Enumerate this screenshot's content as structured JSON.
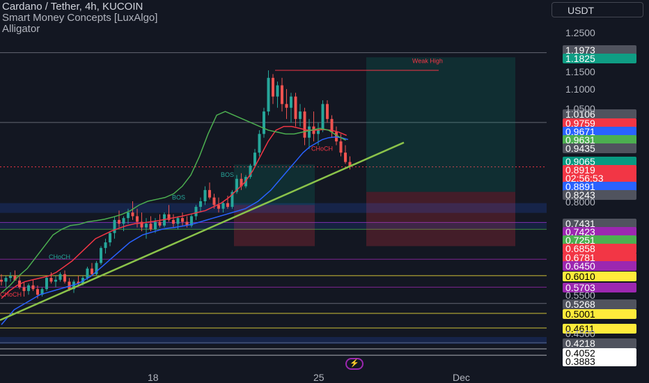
{
  "legend": {
    "symbol": "Cardano / Tether, 4h, KUCOIN",
    "indicator1": "Smart Money Concepts [LuxAlgo]",
    "indicator2": "Alligator"
  },
  "currency": "USDT",
  "chart_data": {
    "type": "candlestick",
    "symbol": "ADA/USDT",
    "timeframe": "4h",
    "exchange": "KUCOIN",
    "ylim": [
      0.3883,
      1.25
    ],
    "y_ticks": [
      "1.2500",
      "1.1500",
      "1.1000",
      "1.0500",
      "0.8000",
      "0.5500",
      "0.4500"
    ],
    "x_ticks": [
      "18",
      "25",
      "Dec"
    ],
    "price_labels": [
      {
        "text": "1.1973",
        "bg": "#50535e",
        "fg": "#ffffff"
      },
      {
        "text": "1.1825",
        "bg": "#0f9d84",
        "fg": "#ffffff"
      },
      {
        "text": "1.0106",
        "bg": "#50535e",
        "fg": "#ffffff"
      },
      {
        "text": "0.9759",
        "bg": "#f23645",
        "fg": "#ffffff"
      },
      {
        "text": "0.9671",
        "bg": "#2962ff",
        "fg": "#ffffff"
      },
      {
        "text": "0.9631",
        "bg": "#4caf50",
        "fg": "#ffffff"
      },
      {
        "text": "0.9435",
        "bg": "#50535e",
        "fg": "#ffffff"
      },
      {
        "text": "0.9065",
        "bg": "#089981",
        "fg": "#ffffff"
      },
      {
        "text": "0.8919",
        "bg": "#f23645",
        "fg": "#ffffff"
      },
      {
        "text": "02:56:53",
        "bg": "#f23645",
        "fg": "#ffffff"
      },
      {
        "text": "0.8891",
        "bg": "#2962ff",
        "fg": "#ffffff"
      },
      {
        "text": "0.8243",
        "bg": "#50535e",
        "fg": "#ffffff"
      },
      {
        "text": "0.7431",
        "bg": "#50535e",
        "fg": "#ffffff"
      },
      {
        "text": "0.7423",
        "bg": "#9c27b0",
        "fg": "#ffffff"
      },
      {
        "text": "0.7251",
        "bg": "#4caf50",
        "fg": "#ffffff"
      },
      {
        "text": "0.6858",
        "bg": "#f23645",
        "fg": "#ffffff"
      },
      {
        "text": "0.6781",
        "bg": "#f23645",
        "fg": "#ffffff"
      },
      {
        "text": "0.6450",
        "bg": "#9c27b0",
        "fg": "#ffffff"
      },
      {
        "text": "0.6010",
        "bg": "#ffeb3b",
        "fg": "#000000"
      },
      {
        "text": "0.5703",
        "bg": "#9c27b0",
        "fg": "#ffffff"
      },
      {
        "text": "0.5268",
        "bg": "#50535e",
        "fg": "#ffffff"
      },
      {
        "text": "0.5001",
        "bg": "#ffeb3b",
        "fg": "#000000"
      },
      {
        "text": "0.4611",
        "bg": "#ffeb3b",
        "fg": "#000000"
      },
      {
        "text": "0.4218",
        "bg": "#50535e",
        "fg": "#ffffff"
      },
      {
        "text": "0.4052",
        "bg": "#ffffff",
        "fg": "#000000"
      },
      {
        "text": "0.3883",
        "bg": "#ffffff",
        "fg": "#000000"
      }
    ],
    "annotations": [
      "Weak High",
      "BOS",
      "BOS",
      "CHoCH",
      "CHoCH",
      "CHoCH"
    ],
    "colors": {
      "up": "#26a69a",
      "down": "#ef5350",
      "jaw": "#2962ff",
      "teeth": "#f23645",
      "lips": "#4caf50",
      "trendline": "#8bc34a"
    },
    "candles": [
      [
        0.59,
        0.605,
        0.575,
        0.585
      ],
      [
        0.585,
        0.6,
        0.57,
        0.595
      ],
      [
        0.595,
        0.61,
        0.585,
        0.6
      ],
      [
        0.6,
        0.615,
        0.59,
        0.588
      ],
      [
        0.588,
        0.6,
        0.565,
        0.57
      ],
      [
        0.57,
        0.585,
        0.545,
        0.56
      ],
      [
        0.56,
        0.58,
        0.55,
        0.575
      ],
      [
        0.575,
        0.59,
        0.56,
        0.565
      ],
      [
        0.565,
        0.575,
        0.54,
        0.55
      ],
      [
        0.55,
        0.57,
        0.545,
        0.565
      ],
      [
        0.565,
        0.6,
        0.56,
        0.595
      ],
      [
        0.595,
        0.61,
        0.58,
        0.585
      ],
      [
        0.585,
        0.6,
        0.57,
        0.59
      ],
      [
        0.59,
        0.61,
        0.585,
        0.605
      ],
      [
        0.605,
        0.615,
        0.58,
        0.585
      ],
      [
        0.585,
        0.595,
        0.56,
        0.565
      ],
      [
        0.565,
        0.59,
        0.555,
        0.585
      ],
      [
        0.585,
        0.6,
        0.575,
        0.58
      ],
      [
        0.58,
        0.6,
        0.575,
        0.595
      ],
      [
        0.595,
        0.625,
        0.59,
        0.62
      ],
      [
        0.62,
        0.635,
        0.6,
        0.605
      ],
      [
        0.605,
        0.64,
        0.6,
        0.635
      ],
      [
        0.635,
        0.68,
        0.63,
        0.675
      ],
      [
        0.675,
        0.7,
        0.66,
        0.69
      ],
      [
        0.69,
        0.72,
        0.68,
        0.715
      ],
      [
        0.715,
        0.76,
        0.7,
        0.75
      ],
      [
        0.75,
        0.775,
        0.73,
        0.74
      ],
      [
        0.74,
        0.76,
        0.72,
        0.755
      ],
      [
        0.755,
        0.78,
        0.74,
        0.77
      ],
      [
        0.77,
        0.8,
        0.75,
        0.76
      ],
      [
        0.76,
        0.78,
        0.73,
        0.745
      ],
      [
        0.745,
        0.77,
        0.72,
        0.73
      ],
      [
        0.73,
        0.755,
        0.7,
        0.74
      ],
      [
        0.74,
        0.76,
        0.72,
        0.725
      ],
      [
        0.725,
        0.755,
        0.715,
        0.745
      ],
      [
        0.745,
        0.765,
        0.73,
        0.735
      ],
      [
        0.735,
        0.77,
        0.73,
        0.765
      ],
      [
        0.765,
        0.79,
        0.745,
        0.75
      ],
      [
        0.75,
        0.765,
        0.73,
        0.74
      ],
      [
        0.74,
        0.76,
        0.725,
        0.755
      ],
      [
        0.755,
        0.77,
        0.735,
        0.745
      ],
      [
        0.745,
        0.76,
        0.73,
        0.735
      ],
      [
        0.735,
        0.765,
        0.73,
        0.76
      ],
      [
        0.76,
        0.79,
        0.75,
        0.785
      ],
      [
        0.785,
        0.81,
        0.77,
        0.8
      ],
      [
        0.8,
        0.84,
        0.79,
        0.83
      ],
      [
        0.83,
        0.85,
        0.805,
        0.81
      ],
      [
        0.81,
        0.82,
        0.78,
        0.79
      ],
      [
        0.79,
        0.81,
        0.77,
        0.78
      ],
      [
        0.78,
        0.8,
        0.77,
        0.795
      ],
      [
        0.795,
        0.815,
        0.78,
        0.785
      ],
      [
        0.785,
        0.83,
        0.78,
        0.825
      ],
      [
        0.825,
        0.87,
        0.82,
        0.86
      ],
      [
        0.86,
        0.875,
        0.83,
        0.84
      ],
      [
        0.84,
        0.87,
        0.835,
        0.865
      ],
      [
        0.865,
        0.9,
        0.86,
        0.895
      ],
      [
        0.895,
        0.94,
        0.89,
        0.93
      ],
      [
        0.93,
        0.99,
        0.92,
        0.98
      ],
      [
        0.98,
        1.05,
        0.97,
        1.04
      ],
      [
        1.04,
        1.15,
        1.03,
        1.13
      ],
      [
        1.13,
        1.14,
        1.06,
        1.08
      ],
      [
        1.08,
        1.12,
        1.05,
        1.11
      ],
      [
        1.11,
        1.13,
        1.04,
        1.06
      ],
      [
        1.06,
        1.1,
        1.02,
        1.05
      ],
      [
        1.05,
        1.09,
        1.01,
        1.08
      ],
      [
        1.08,
        1.09,
        1.0,
        1.02
      ],
      [
        1.02,
        1.06,
        1.0,
        1.04
      ],
      [
        1.04,
        1.05,
        0.95,
        0.97
      ],
      [
        0.97,
        1.02,
        0.94,
        1.0
      ],
      [
        1.0,
        1.04,
        0.96,
        0.98
      ],
      [
        0.98,
        1.01,
        0.95,
        0.99
      ],
      [
        0.99,
        1.07,
        0.985,
        1.06
      ],
      [
        1.06,
        1.07,
        1.01,
        1.02
      ],
      [
        1.02,
        1.03,
        0.97,
        0.985
      ],
      [
        0.985,
        1.0,
        0.95,
        0.96
      ],
      [
        0.96,
        0.98,
        0.92,
        0.93
      ],
      [
        0.93,
        0.95,
        0.9,
        0.905
      ],
      [
        0.905,
        0.92,
        0.885,
        0.892
      ]
    ],
    "jaw": [
      0.47,
      0.49,
      0.51,
      0.52,
      0.53,
      0.54,
      0.55,
      0.555,
      0.56,
      0.565,
      0.57,
      0.575,
      0.58,
      0.59,
      0.6,
      0.615,
      0.63,
      0.645,
      0.66,
      0.675,
      0.69,
      0.7,
      0.71,
      0.715,
      0.72,
      0.725,
      0.728,
      0.73,
      0.733,
      0.736,
      0.74,
      0.745,
      0.75,
      0.755,
      0.76,
      0.765,
      0.77,
      0.775,
      0.78,
      0.79,
      0.8,
      0.815,
      0.83,
      0.85,
      0.87,
      0.89,
      0.91,
      0.93,
      0.945,
      0.955,
      0.965,
      0.97,
      0.972,
      0.97,
      0.965
    ],
    "teeth": [
      0.54,
      0.56,
      0.575,
      0.585,
      0.59,
      0.595,
      0.6,
      0.61,
      0.625,
      0.64,
      0.66,
      0.68,
      0.7,
      0.71,
      0.72,
      0.728,
      0.735,
      0.74,
      0.742,
      0.745,
      0.748,
      0.752,
      0.756,
      0.76,
      0.765,
      0.77,
      0.775,
      0.785,
      0.795,
      0.81,
      0.83,
      0.85,
      0.88,
      0.92,
      0.96,
      0.99,
      1.0,
      1.0,
      0.995,
      0.99,
      0.99,
      0.992,
      0.99,
      0.985,
      0.976
    ],
    "lips": [
      0.555,
      0.575,
      0.6,
      0.62,
      0.65,
      0.68,
      0.71,
      0.725,
      0.735,
      0.738,
      0.745,
      0.748,
      0.752,
      0.758,
      0.765,
      0.775,
      0.79,
      0.8,
      0.805,
      0.81,
      0.82,
      0.84,
      0.87,
      0.92,
      0.98,
      1.03,
      1.04,
      1.03,
      1.02,
      1.01,
      1.0,
      0.99,
      0.985,
      0.98,
      0.98,
      0.985,
      0.99,
      0.995,
      0.99,
      0.975,
      0.963
    ],
    "trendline": [
      [
        0.0,
        0.482
      ],
      [
        0.58,
        0.957
      ]
    ]
  }
}
